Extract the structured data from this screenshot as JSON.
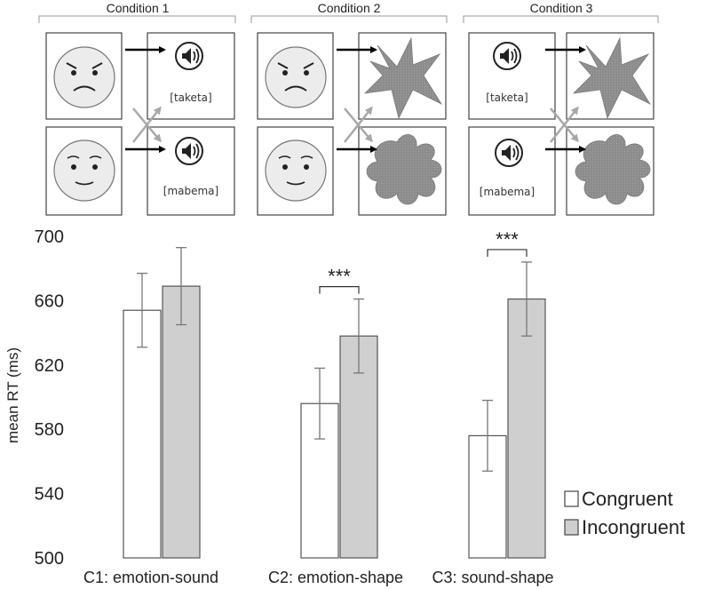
{
  "stimuli": {
    "conditions": [
      {
        "title": "Condition 1",
        "top_label": "[taketa]",
        "bottom_label": "[mabema]"
      },
      {
        "title": "Condition 2"
      },
      {
        "title": "Condition 3",
        "top_label": "[taketa]",
        "bottom_label": "[mabema]"
      }
    ],
    "colors": {
      "face": "#ececec",
      "shape": "#8a8a8a",
      "arrow_black": "#000000",
      "arrow_gray": "#a8a8a8"
    }
  },
  "chart_data": {
    "type": "bar",
    "categories": [
      "C1: emotion-sound",
      "C2: emotion-shape",
      "C3: sound-shape"
    ],
    "series": [
      {
        "name": "Congruent",
        "values": [
          654,
          596,
          576
        ],
        "errors": [
          23,
          22,
          22
        ],
        "color": "#ffffff"
      },
      {
        "name": "Incongruent",
        "values": [
          669,
          638,
          661
        ],
        "errors": [
          24,
          23,
          23
        ],
        "color": "#cfcfcf"
      }
    ],
    "ylabel": "mean RT (ms)",
    "ylim": [
      500,
      700
    ],
    "yticks": [
      500,
      540,
      580,
      620,
      660,
      700
    ],
    "grid": false,
    "legend": "bottom-right",
    "annotations": [
      {
        "category": 1,
        "text": "***"
      },
      {
        "category": 2,
        "text": "***"
      }
    ]
  }
}
